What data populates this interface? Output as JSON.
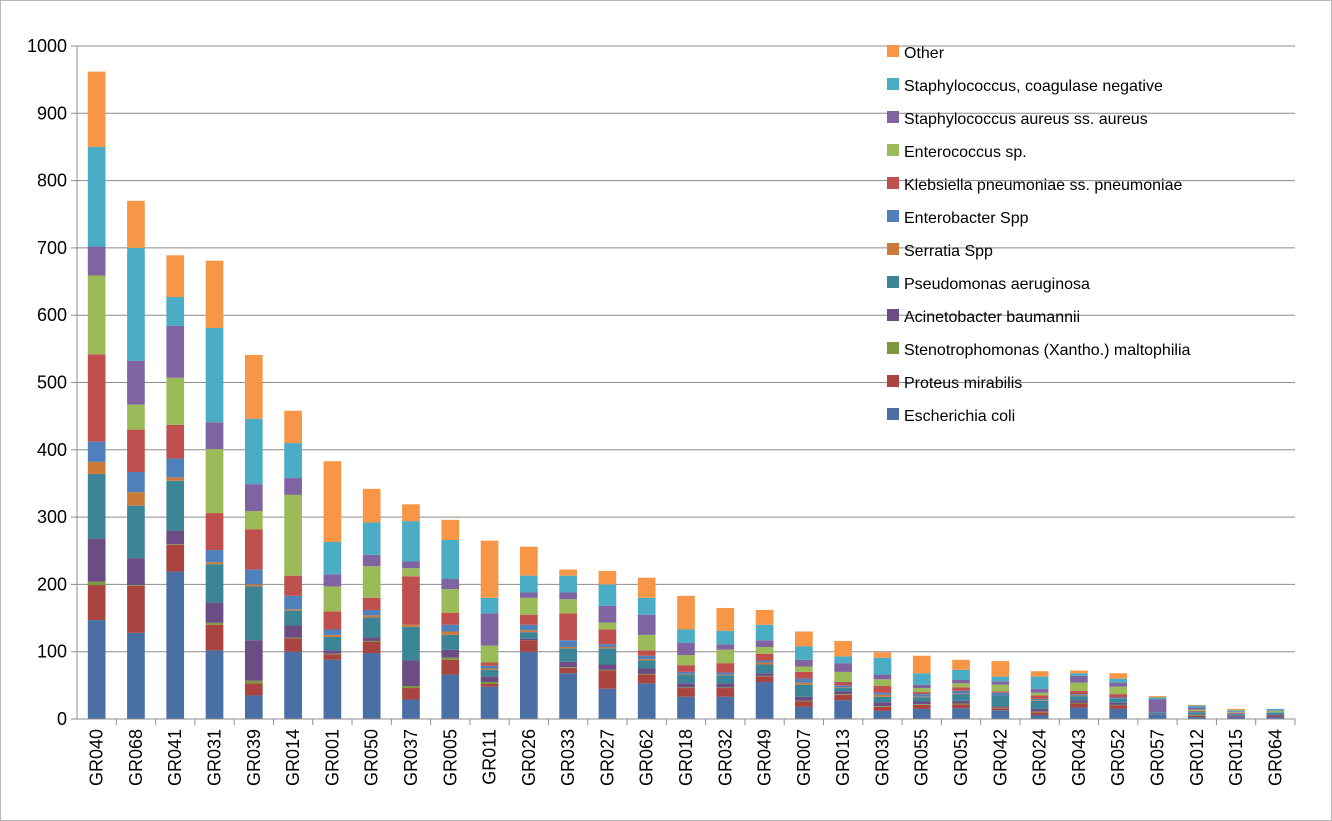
{
  "chart_data": {
    "type": "bar",
    "stacked": true,
    "title": "",
    "xlabel": "",
    "ylabel": "",
    "ylim": [
      0,
      1000
    ],
    "yticks": [
      0,
      100,
      200,
      300,
      400,
      500,
      600,
      700,
      800,
      900,
      1000
    ],
    "grid": true,
    "legend_position": "top-right",
    "categories": [
      "GR040",
      "GR068",
      "GR041",
      "GR031",
      "GR039",
      "GR014",
      "GR001",
      "GR050",
      "GR037",
      "GR005",
      "GR011",
      "GR026",
      "GR033",
      "GR027",
      "GR062",
      "GR018",
      "GR032",
      "GR049",
      "GR007",
      "GR013",
      "GR030",
      "GR055",
      "GR051",
      "GR042",
      "GR024",
      "GR043",
      "GR052",
      "GR057",
      "GR012",
      "GR015",
      "GR064"
    ],
    "series": [
      {
        "name": "Escherichia coli",
        "color": "#4a6fa5",
        "values": [
          147,
          128,
          219,
          102,
          35,
          100,
          88,
          98,
          29,
          66,
          48,
          100,
          68,
          45,
          53,
          33,
          33,
          55,
          18,
          28,
          12,
          15,
          16,
          13,
          6,
          17,
          15,
          7,
          3,
          3,
          3
        ]
      },
      {
        "name": "Proteus mirabilis",
        "color": "#a94441",
        "values": [
          52,
          70,
          40,
          38,
          18,
          20,
          8,
          17,
          17,
          22,
          4,
          17,
          8,
          27,
          13,
          13,
          13,
          8,
          8,
          8,
          6,
          6,
          6,
          3,
          4,
          6,
          5,
          0,
          2,
          1,
          2
        ]
      },
      {
        "name": "Stenotrophomonas (Xantho.) maltophilia",
        "color": "#7a9a3c",
        "values": [
          5,
          1,
          1,
          3,
          4,
          1,
          1,
          1,
          3,
          3,
          3,
          0,
          1,
          1,
          1,
          1,
          1,
          1,
          1,
          1,
          1,
          1,
          1,
          1,
          1,
          1,
          1,
          0,
          1,
          0,
          0
        ]
      },
      {
        "name": "Acinetobacter baumannii",
        "color": "#6b4c85",
        "values": [
          64,
          40,
          20,
          30,
          60,
          18,
          5,
          5,
          38,
          12,
          8,
          2,
          8,
          8,
          8,
          6,
          6,
          4,
          6,
          4,
          6,
          4,
          4,
          2,
          4,
          4,
          3,
          1,
          1,
          1,
          1
        ]
      },
      {
        "name": "Pseudomonas aeruginosa",
        "color": "#3b8597",
        "values": [
          96,
          78,
          74,
          57,
          80,
          22,
          20,
          30,
          50,
          22,
          10,
          10,
          20,
          24,
          12,
          13,
          12,
          13,
          18,
          5,
          8,
          6,
          10,
          16,
          12,
          6,
          6,
          2,
          3,
          2,
          3
        ]
      },
      {
        "name": "Serratia Spp",
        "color": "#cc7a3a",
        "values": [
          18,
          20,
          5,
          3,
          3,
          2,
          3,
          3,
          3,
          5,
          2,
          3,
          2,
          2,
          2,
          1,
          1,
          3,
          3,
          1,
          3,
          1,
          1,
          0,
          1,
          1,
          0,
          0,
          0,
          0,
          0
        ]
      },
      {
        "name": "Enterobacter Spp",
        "color": "#4f81bd",
        "values": [
          30,
          30,
          28,
          18,
          22,
          20,
          8,
          8,
          0,
          10,
          4,
          8,
          10,
          4,
          5,
          3,
          3,
          3,
          6,
          3,
          3,
          4,
          4,
          4,
          2,
          2,
          2,
          0,
          1,
          1,
          1
        ]
      },
      {
        "name": "Klebsiella pneumoniae ss. pneumoniae",
        "color": "#c0504d",
        "values": [
          130,
          63,
          50,
          55,
          60,
          30,
          27,
          18,
          72,
          18,
          5,
          15,
          40,
          22,
          8,
          10,
          14,
          10,
          10,
          5,
          10,
          3,
          5,
          2,
          5,
          5,
          5,
          0,
          1,
          1,
          0
        ]
      },
      {
        "name": "Enterococcus sp.",
        "color": "#9bbb59",
        "values": [
          117,
          37,
          70,
          95,
          27,
          120,
          37,
          47,
          12,
          35,
          25,
          25,
          21,
          10,
          23,
          15,
          20,
          10,
          8,
          15,
          10,
          6,
          6,
          10,
          4,
          12,
          11,
          0,
          2,
          1,
          2
        ]
      },
      {
        "name": "Staphylococcus aureus ss. aureus",
        "color": "#8064a2",
        "values": [
          43,
          65,
          77,
          40,
          40,
          25,
          18,
          17,
          10,
          15,
          48,
          8,
          10,
          25,
          30,
          18,
          8,
          10,
          10,
          13,
          7,
          5,
          5,
          5,
          6,
          10,
          6,
          19,
          3,
          1,
          1
        ]
      },
      {
        "name": "Staphylococcus, coagulase negative",
        "color": "#4bacc6",
        "values": [
          148,
          168,
          43,
          140,
          97,
          52,
          48,
          48,
          60,
          58,
          23,
          25,
          25,
          32,
          25,
          20,
          20,
          23,
          20,
          10,
          25,
          17,
          15,
          7,
          18,
          4,
          6,
          3,
          3,
          2,
          2
        ]
      },
      {
        "name": "Other",
        "color": "#f79646",
        "values": [
          112,
          70,
          62,
          100,
          95,
          48,
          120,
          50,
          25,
          30,
          85,
          43,
          9,
          20,
          30,
          50,
          34,
          22,
          22,
          23,
          8,
          26,
          15,
          23,
          8,
          4,
          8,
          2,
          1,
          2,
          0
        ]
      }
    ]
  }
}
